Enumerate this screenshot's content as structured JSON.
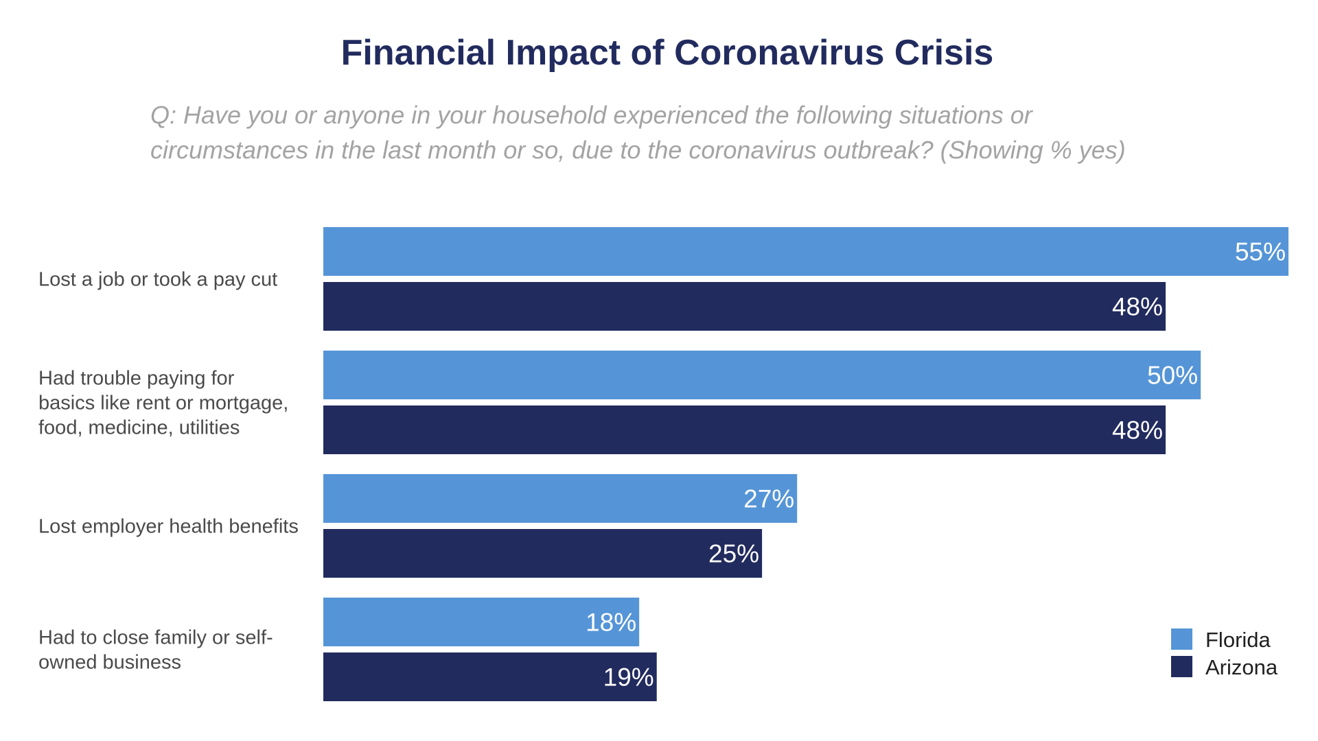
{
  "chart_data": {
    "type": "bar",
    "orientation": "horizontal",
    "title": "Financial Impact of Coronavirus Crisis",
    "subtitle": [
      "Q: Have you or anyone in your household experienced the following situations or",
      "circumstances in the last month or so, due to the coronavirus outbreak? (Showing % yes)"
    ],
    "categories": [
      [
        "Lost a job or took a pay cut"
      ],
      [
        "Had trouble paying for",
        "basics like rent or mortgage,",
        "food, medicine, utilities"
      ],
      [
        "Lost employer health benefits"
      ],
      [
        "Had to close family or self-",
        "owned business"
      ]
    ],
    "series": [
      {
        "name": "Florida",
        "values": [
          55,
          50,
          27,
          18
        ],
        "color": "#5595d7",
        "labels": [
          "55%",
          "50%",
          "27%",
          "18%"
        ]
      },
      {
        "name": "Arizona",
        "values": [
          48,
          48,
          25,
          19
        ],
        "color": "#212b5e",
        "labels": [
          "48%",
          "48%",
          "25%",
          "19%"
        ]
      }
    ],
    "xlim": [
      0,
      55
    ],
    "grid": false,
    "legend_position": "bottom-right",
    "colors": {
      "title": "#212b5e",
      "subtitle": "#a3a3a3",
      "category_text": "#4a4a4a",
      "legend_text": "#1f1f1f",
      "data_label": "#ffffff"
    }
  }
}
